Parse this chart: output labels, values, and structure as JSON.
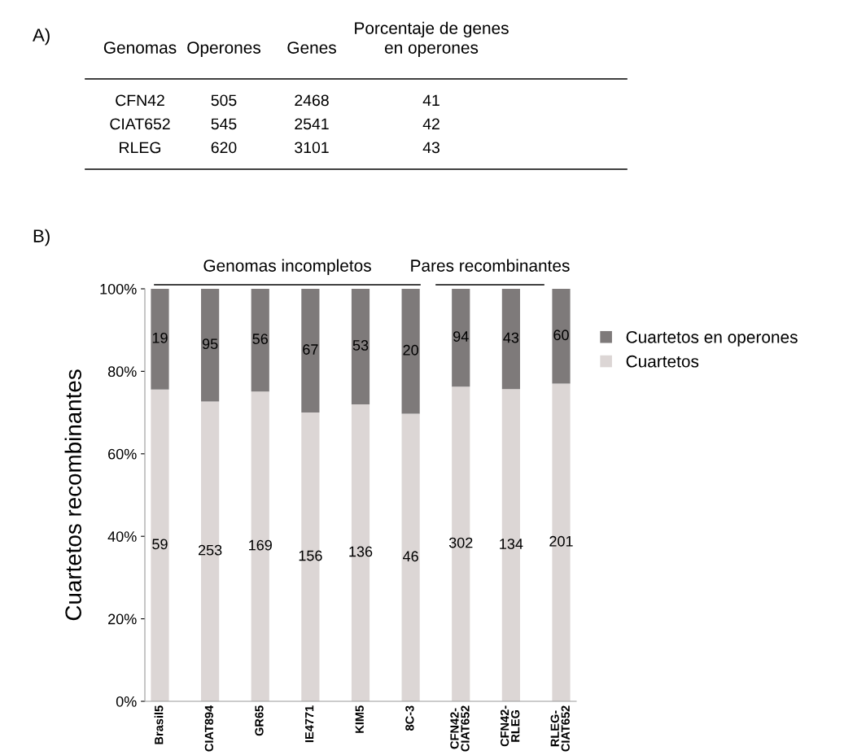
{
  "chart_data": [
    {
      "type": "other",
      "title": "A)",
      "categories": [
        "Genomas",
        "Operones",
        "Genes",
        "Porcentaje de genes\nen operones"
      ],
      "annotations": [
        "CFN42",
        "505",
        "2468",
        "41",
        "CIAT652",
        "545",
        "2541",
        "42",
        "RLEG",
        "620",
        "3101",
        "43"
      ]
    },
    {
      "type": "bar",
      "title": "B)",
      "stacked": true,
      "ylabel": "Cuartetos recombinantes",
      "categories": [
        "Brasil5",
        "CIAT894",
        "GR65",
        "IE4771",
        "KIM5",
        "8C-3",
        "CFN42-\nCIAT652",
        "CFN42-\nRLEG",
        "RLEG-\nCIAT652"
      ],
      "series": [
        {
          "name": "Cuartetos",
          "color": "#dcd6d5",
          "values": [
            75.6,
            72.7,
            75.1,
            70.0,
            72.0,
            69.7,
            76.3,
            75.7,
            77.0
          ]
        },
        {
          "name": "Cuartetos en operones",
          "color": "#7e7a7a",
          "values": [
            24.4,
            27.3,
            24.9,
            30.0,
            28.0,
            30.3,
            23.7,
            24.3,
            23.0
          ]
        }
      ],
      "ylim": [
        0,
        100
      ],
      "yticks": [
        {
          "value": 0,
          "label": "0%"
        },
        {
          "value": 20,
          "label": "20%"
        },
        {
          "value": 40,
          "label": "40%"
        },
        {
          "value": 60,
          "label": "60%"
        },
        {
          "value": 80,
          "label": "80%"
        },
        {
          "value": 100,
          "label": "100%"
        }
      ],
      "annotations": [
        "Genomas incompletos",
        "Pares recombinantes",
        "59",
        "253",
        "169",
        "156",
        "136",
        "46",
        "302",
        "134",
        "201",
        "19",
        "95",
        "56",
        "67",
        "53",
        "20",
        "94",
        "43",
        "60"
      ],
      "legend": "right",
      "grid": false
    }
  ]
}
